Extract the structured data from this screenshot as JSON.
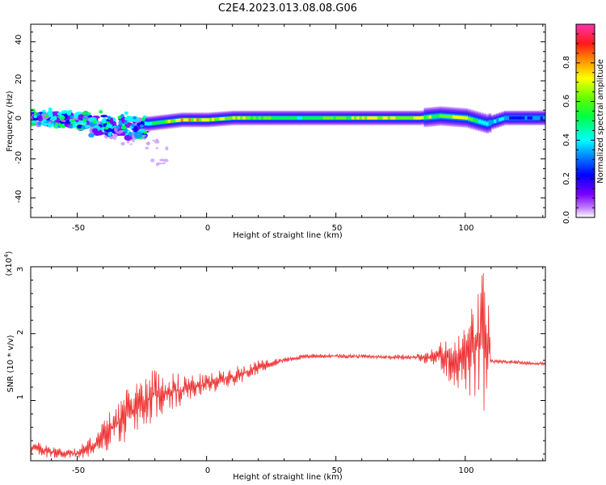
{
  "figure_title": "C2E4.2023.013.08.08.G06",
  "colors": {
    "line": "#ee3333",
    "frame": "#000000",
    "background": "#ffffff"
  },
  "chart_data": [
    {
      "type": "heatmap",
      "title": "C2E4.2023.013.08.08.G06",
      "xlabel": "Height of straight line (km)",
      "ylabel": "Frequency (Hz)",
      "xlim": [
        -68,
        131
      ],
      "ylim": [
        -50,
        49
      ],
      "xticks": [
        -50,
        0,
        50,
        100
      ],
      "yticks": [
        40,
        20,
        0,
        -20,
        -40
      ],
      "xtick_labels": [
        "-50",
        "0",
        "50",
        "100"
      ],
      "ytick_labels": [
        "40",
        "20",
        "0",
        "-20",
        "-40"
      ],
      "colorbar": {
        "label": "Normalized spectral amplitude",
        "range": [
          0,
          1
        ],
        "ticks": [
          0.0,
          0.2,
          0.4,
          0.6,
          0.8
        ],
        "tick_labels": [
          "0.0",
          "0.2",
          "0.4",
          "0.6",
          "0.8"
        ],
        "colormap": "rainbow (white-violet-blue-cyan-green-yellow-red-magenta)"
      },
      "ridge": [
        {
          "x": -68,
          "y": 1,
          "amp": 0.3
        },
        {
          "x": -60,
          "y": 1,
          "amp": 0.3
        },
        {
          "x": -50,
          "y": 0,
          "amp": 0.3
        },
        {
          "x": -40,
          "y": 0,
          "amp": 0.3
        },
        {
          "x": -30,
          "y": -1,
          "amp": 0.3
        },
        {
          "x": -23,
          "y": -2,
          "amp": 0.5
        },
        {
          "x": -10,
          "y": 0,
          "amp": 0.8
        },
        {
          "x": 0,
          "y": 0,
          "amp": 0.75
        },
        {
          "x": 10,
          "y": 1,
          "amp": 0.7
        },
        {
          "x": 30,
          "y": 1,
          "amp": 0.55
        },
        {
          "x": 50,
          "y": 1,
          "amp": 0.6
        },
        {
          "x": 65,
          "y": 1,
          "amp": 0.75
        },
        {
          "x": 82,
          "y": 1,
          "amp": 0.7
        },
        {
          "x": 90,
          "y": 2,
          "amp": 0.6
        },
        {
          "x": 100,
          "y": 1,
          "amp": 0.75
        },
        {
          "x": 108,
          "y": -2,
          "amp": 0.4
        },
        {
          "x": 115,
          "y": 1,
          "amp": 0.35
        },
        {
          "x": 131,
          "y": 1,
          "amp": 0.35
        }
      ]
    },
    {
      "type": "line",
      "xlabel": "Height of straight line (km)",
      "ylabel": "SNR (10 * v/v)",
      "y_multiplier_label": "(x10⁴)",
      "xlim": [
        -68,
        131
      ],
      "ylim": [
        0.1,
        3.0
      ],
      "xticks": [
        -50,
        0,
        50,
        100
      ],
      "yticks": [
        1,
        2,
        3
      ],
      "xtick_labels": [
        "-50",
        "0",
        "50",
        "100"
      ],
      "ytick_labels": [
        "1",
        "2",
        "3"
      ],
      "series": [
        {
          "name": "SNR",
          "envelope_x": [
            -68,
            -62,
            -56,
            -50,
            -45,
            -40,
            -35,
            -30,
            -25,
            -20,
            -15,
            -10,
            -5,
            0,
            5,
            10,
            15,
            20,
            25,
            30,
            35,
            40,
            50,
            60,
            70,
            80,
            85,
            90,
            93,
            96,
            100,
            103,
            105,
            107,
            108,
            109,
            110,
            115,
            120,
            125,
            131
          ],
          "envelope_low": [
            0.2,
            0.15,
            0.12,
            0.12,
            0.15,
            0.2,
            0.3,
            0.4,
            0.55,
            0.7,
            0.8,
            0.9,
            1.0,
            1.1,
            1.15,
            1.2,
            1.3,
            1.4,
            1.5,
            1.56,
            1.6,
            1.63,
            1.63,
            1.63,
            1.62,
            1.6,
            1.55,
            1.5,
            1.3,
            1.2,
            1.1,
            1.0,
            0.9,
            0.7,
            0.8,
            1.2,
            1.55,
            1.55,
            1.55,
            1.53,
            1.53
          ],
          "envelope_high": [
            0.4,
            0.35,
            0.3,
            0.3,
            0.45,
            0.7,
            1.0,
            1.2,
            1.4,
            1.5,
            1.45,
            1.4,
            1.4,
            1.4,
            1.45,
            1.5,
            1.55,
            1.6,
            1.62,
            1.65,
            1.68,
            1.7,
            1.7,
            1.69,
            1.68,
            1.7,
            1.72,
            1.85,
            2.0,
            1.9,
            2.2,
            2.5,
            2.8,
            3.0,
            2.9,
            2.7,
            1.62,
            1.6,
            1.6,
            1.58,
            1.58
          ]
        }
      ]
    }
  ],
  "labels": {
    "p1_x_ticks": [
      "-50",
      "0",
      "50",
      "100"
    ],
    "p1_y_ticks": [
      "40",
      "20",
      "0",
      "-20",
      "-40"
    ],
    "p1_xlabel": "Height of straight line (km)",
    "p1_ylabel": "Frequency (Hz)",
    "cb_ticks": [
      "0.0",
      "0.2",
      "0.4",
      "0.6",
      "0.8"
    ],
    "cb_label": "Normalized spectral amplitude",
    "p2_x_ticks": [
      "-50",
      "0",
      "50",
      "100"
    ],
    "p2_y_ticks": [
      "1",
      "2",
      "3"
    ],
    "p2_xlabel": "Height of straight line (km)",
    "p2_ylabel": "SNR (10 * v/v)",
    "p2_multiplier": "(x10",
    "p2_multiplier_exp": "4",
    "p2_multiplier_close": ")"
  }
}
